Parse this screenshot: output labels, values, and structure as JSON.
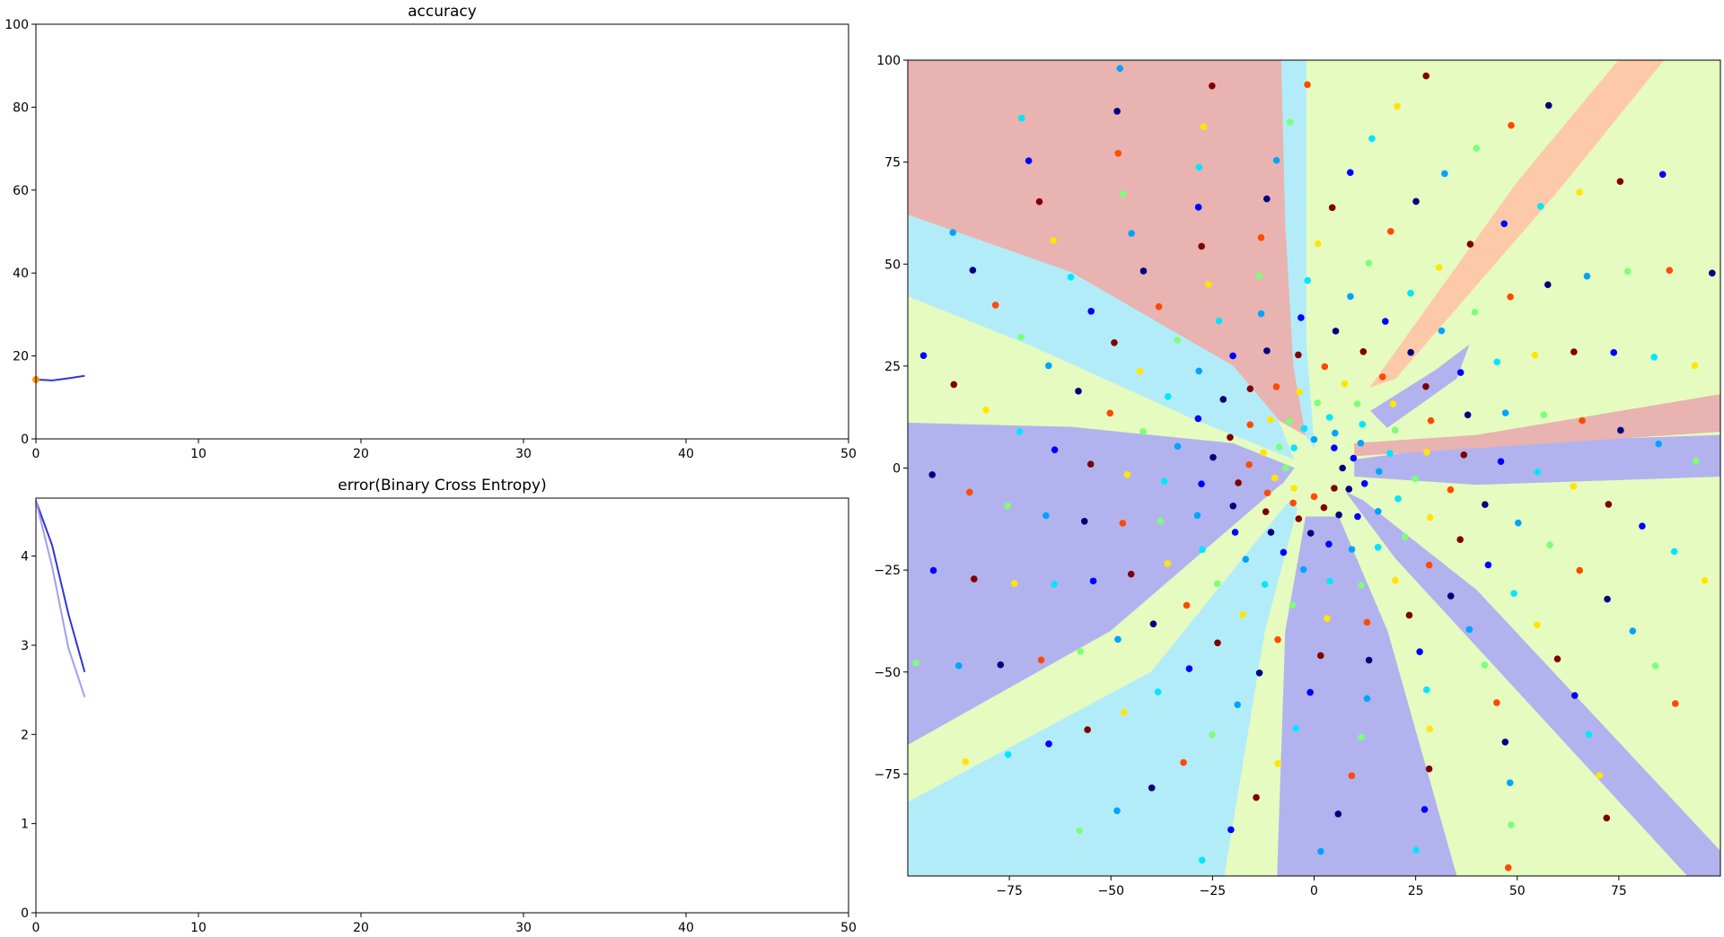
{
  "chart_data": [
    {
      "type": "line",
      "title": "accuracy",
      "xlim": [
        0,
        50
      ],
      "ylim": [
        0,
        100
      ],
      "xticks": [
        0,
        10,
        20,
        30,
        40,
        50
      ],
      "yticks": [
        0,
        20,
        40,
        60,
        80,
        100
      ],
      "series": [
        {
          "color": "#3333dd",
          "x": [
            0,
            1,
            2,
            3
          ],
          "y": [
            14.3,
            14.1,
            14.6,
            15.2
          ]
        }
      ],
      "markers": [
        {
          "x": 0,
          "y": 14.3,
          "color": "#ff9900"
        }
      ]
    },
    {
      "type": "line",
      "title": "error(Binary Cross Entropy)",
      "xlim": [
        0,
        50
      ],
      "ylim": [
        0,
        4.65
      ],
      "xticks": [
        0,
        10,
        20,
        30,
        40,
        50
      ],
      "yticks": [
        0,
        1,
        2,
        3,
        4
      ],
      "series": [
        {
          "color": "#3333dd",
          "x": [
            0,
            1,
            2,
            3
          ],
          "y": [
            4.62,
            4.12,
            3.35,
            2.7
          ]
        },
        {
          "color": "#9f9ff0",
          "x": [
            0,
            1,
            2,
            3
          ],
          "y": [
            4.62,
            3.88,
            2.97,
            2.42
          ]
        }
      ]
    },
    {
      "type": "scatter",
      "title": "",
      "xlim": [
        -100,
        100
      ],
      "ylim": [
        -100,
        100
      ],
      "xticks": [
        -75,
        -50,
        -25,
        0,
        25,
        50,
        75
      ],
      "yticks": [
        -75,
        -50,
        -25,
        0,
        25,
        50,
        75,
        100
      ],
      "classes": 8,
      "class_colors": [
        "#00007f",
        "#0000ff",
        "#00a4ff",
        "#00e6ff",
        "#7cff79",
        "#ffe600",
        "#ff4a00",
        "#7f0000"
      ],
      "region_colors": [
        "#e8b3b0",
        "#b3ecf9",
        "#e5fbc0",
        "#b2b3ee",
        "#fdc9a8"
      ],
      "spiral": {
        "arms": 8,
        "points_per_arm": 36,
        "start_radius": 7,
        "radius_step": 3,
        "turn_step_deg": 14
      },
      "regions": [
        {
          "color": "#e8b3b0",
          "points": [
            [
              -100,
              100
            ],
            [
              -8,
              100
            ],
            [
              -7,
              60
            ],
            [
              -5,
              25
            ],
            [
              -2,
              8
            ],
            [
              -9,
              12
            ],
            [
              -20,
              25
            ],
            [
              -60,
              48
            ],
            [
              -100,
              62
            ]
          ]
        },
        {
          "color": "#b3ecf9",
          "points": [
            [
              -8,
              100
            ],
            [
              -2,
              100
            ],
            [
              -2,
              30
            ],
            [
              0,
              5
            ],
            [
              -2,
              8
            ],
            [
              -5,
              25
            ],
            [
              -7,
              60
            ]
          ]
        },
        {
          "color": "#b3ecf9",
          "points": [
            [
              -100,
              62
            ],
            [
              -60,
              48
            ],
            [
              -20,
              25
            ],
            [
              -9,
              12
            ],
            [
              -5,
              2
            ],
            [
              -30,
              12
            ],
            [
              -70,
              30
            ],
            [
              -100,
              42
            ]
          ]
        },
        {
          "color": "#e5fbc0",
          "points": [
            [
              -100,
              42
            ],
            [
              -70,
              30
            ],
            [
              -30,
              12
            ],
            [
              -5,
              2
            ],
            [
              -20,
              6
            ],
            [
              -60,
              10
            ],
            [
              -100,
              11
            ]
          ]
        },
        {
          "color": "#b2b3ee",
          "points": [
            [
              -100,
              11
            ],
            [
              -60,
              10
            ],
            [
              -20,
              6
            ],
            [
              -5,
              0
            ],
            [
              -8,
              -4
            ],
            [
              -50,
              -40
            ],
            [
              -100,
              -68
            ]
          ]
        },
        {
          "color": "#e5fbc0",
          "points": [
            [
              -100,
              -68
            ],
            [
              -50,
              -40
            ],
            [
              -8,
              -4
            ],
            [
              -6,
              -8
            ],
            [
              -40,
              -50
            ],
            [
              -100,
              -82
            ]
          ]
        },
        {
          "color": "#b3ecf9",
          "points": [
            [
              -100,
              -82
            ],
            [
              -40,
              -50
            ],
            [
              -6,
              -8
            ],
            [
              -4,
              -10
            ],
            [
              -12,
              -40
            ],
            [
              -22,
              -100
            ],
            [
              -100,
              -100
            ]
          ]
        },
        {
          "color": "#e5fbc0",
          "points": [
            [
              -22,
              -100
            ],
            [
              -12,
              -40
            ],
            [
              -4,
              -10
            ],
            [
              -2,
              -12
            ],
            [
              -7,
              -40
            ],
            [
              -9,
              -100
            ]
          ]
        },
        {
          "color": "#b2b3ee",
          "points": [
            [
              -9,
              -100
            ],
            [
              -7,
              -40
            ],
            [
              -2,
              -12
            ],
            [
              6,
              -12
            ],
            [
              18,
              -40
            ],
            [
              35,
              -100
            ]
          ]
        },
        {
          "color": "#b2b3ee",
          "points": [
            [
              92,
              -100
            ],
            [
              100,
              -100
            ],
            [
              100,
              -94
            ],
            [
              40,
              -30
            ],
            [
              12,
              -8
            ],
            [
              8,
              -6
            ],
            [
              20,
              -22
            ]
          ]
        },
        {
          "color": "#b2b3ee",
          "points": [
            [
              10,
              2
            ],
            [
              40,
              6
            ],
            [
              100,
              8
            ],
            [
              100,
              -2
            ],
            [
              40,
              -4
            ],
            [
              10,
              -2
            ]
          ]
        },
        {
          "color": "#e8b3b0",
          "points": [
            [
              10,
              6
            ],
            [
              40,
              8
            ],
            [
              100,
              18
            ],
            [
              100,
              9
            ],
            [
              40,
              5
            ],
            [
              10,
              3
            ]
          ]
        },
        {
          "color": "#fdc9a8",
          "points": [
            [
              20,
              22
            ],
            [
              60,
              68
            ],
            [
              86,
              100
            ],
            [
              75,
              100
            ],
            [
              50,
              70
            ],
            [
              14,
              20
            ]
          ]
        },
        {
          "color": "#b2b3ee",
          "points": [
            [
              14,
              14
            ],
            [
              30,
              24
            ],
            [
              38,
              30
            ],
            [
              35,
              22
            ],
            [
              18,
              10
            ]
          ]
        }
      ]
    }
  ]
}
